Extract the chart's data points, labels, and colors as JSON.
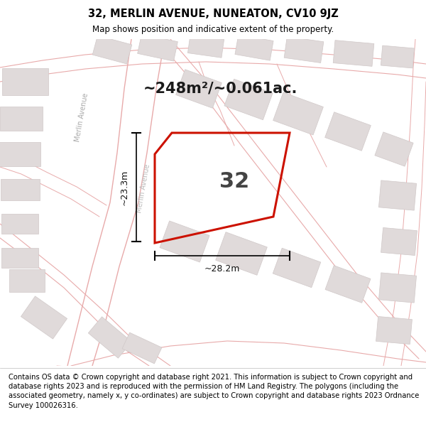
{
  "title": "32, MERLIN AVENUE, NUNEATON, CV10 9JZ",
  "subtitle": "Map shows position and indicative extent of the property.",
  "area_text": "~248m²/~0.061ac.",
  "plot_number": "32",
  "dim_width": "~28.2m",
  "dim_height": "~23.3m",
  "footer": "Contains OS data © Crown copyright and database right 2021. This information is subject to Crown copyright and database rights 2023 and is reproduced with the permission of HM Land Registry. The polygons (including the associated geometry, namely x, y co-ordinates) are subject to Crown copyright and database rights 2023 Ordnance Survey 100026316.",
  "map_bg": "#f7f4f2",
  "plot_edge_color": "#cc1100",
  "road_line_color": "#e8aaaa",
  "building_fill": "#e0dada",
  "building_edge": "#d0c8c8",
  "road_label_color": "#aaaaaa",
  "title_fontsize": 10.5,
  "subtitle_fontsize": 8.5,
  "footer_fontsize": 7.2,
  "area_fontsize": 15,
  "number_fontsize": 22,
  "dim_fontsize": 9
}
